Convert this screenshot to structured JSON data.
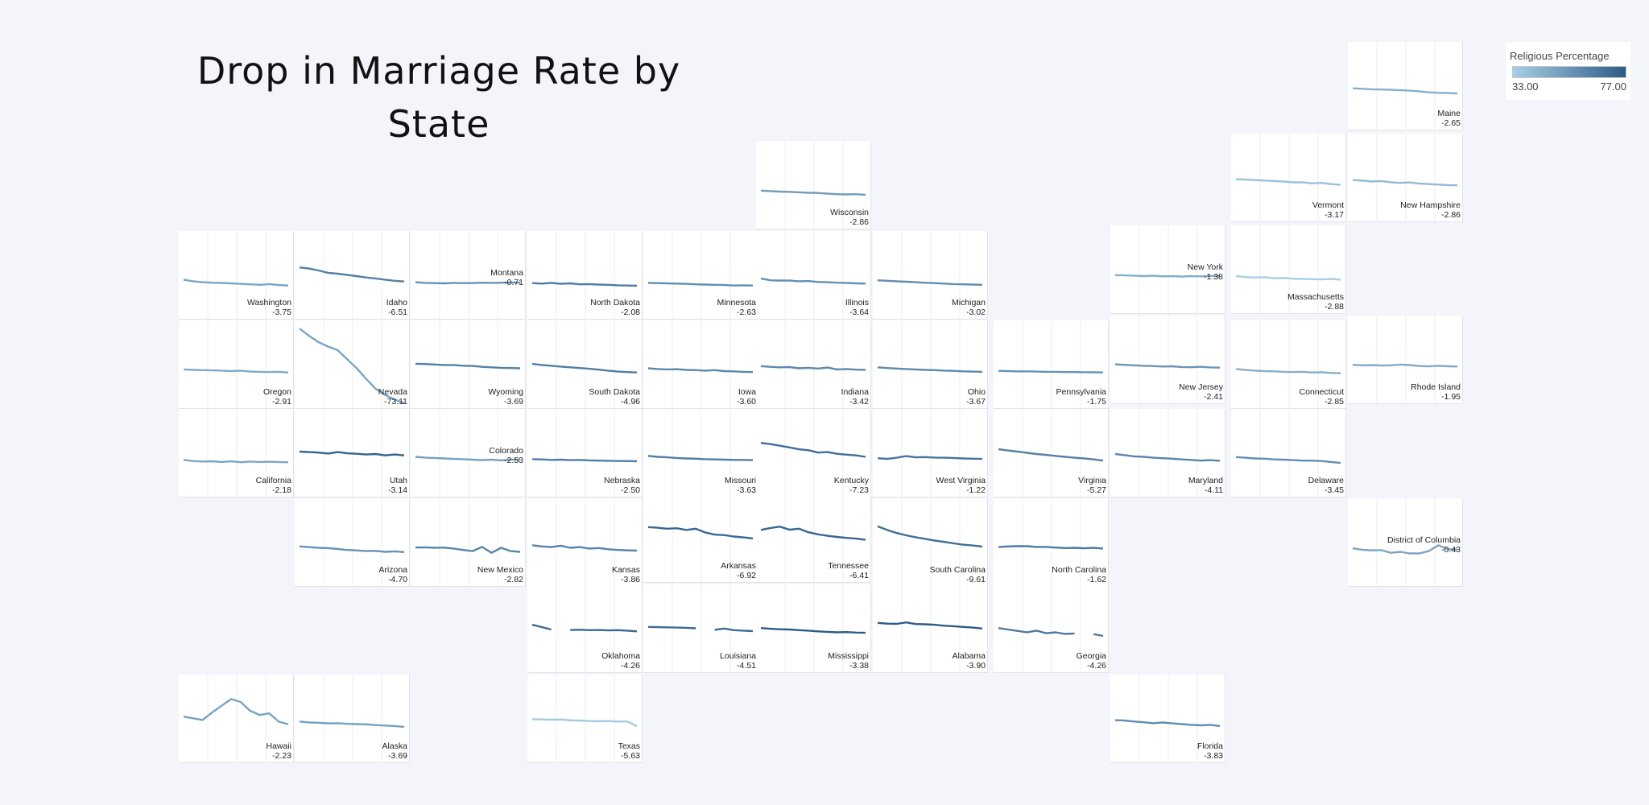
{
  "title": "Drop in Marriage Rate by State",
  "legend": {
    "title": "Religious Percentage",
    "min": "33.00",
    "max": "77.00",
    "color_min": "#a8cfe6",
    "color_max": "#2e5b88"
  },
  "chart_data": {
    "type": "line",
    "title": "Drop in Marriage Rate by State",
    "color_scale": {
      "label": "Religious Percentage",
      "min": 33,
      "max": 77
    },
    "series": [
      {
        "name": "Maine",
        "change": "-2.65",
        "religious": 45,
        "values": [
          9.2,
          9.0,
          8.8,
          8.7,
          8.6,
          8.4,
          8.2,
          7.9,
          7.5,
          7.3,
          7.2,
          7.0
        ]
      },
      {
        "name": "Vermont",
        "change": "-3.17",
        "religious": 38,
        "values": [
          9.6,
          9.4,
          9.2,
          9.0,
          8.8,
          8.6,
          8.2,
          8.3,
          7.8,
          8.0,
          7.5,
          7.2
        ]
      },
      {
        "name": "New Hampshire",
        "change": "-2.86",
        "religious": 41,
        "values": [
          9.2,
          9.0,
          8.6,
          8.8,
          8.3,
          8.0,
          8.2,
          7.7,
          7.5,
          7.3,
          7.1,
          7.0
        ]
      },
      {
        "name": "Wisconsin",
        "change": "-2.86",
        "religious": 53,
        "values": [
          7.8,
          7.6,
          7.4,
          7.3,
          7.1,
          6.9,
          6.8,
          6.5,
          6.3,
          6.2,
          6.3,
          6.0
        ]
      },
      {
        "name": "Washington",
        "change": "-3.75",
        "religious": 49,
        "values": [
          8.2,
          7.6,
          7.2,
          7.0,
          6.9,
          6.7,
          6.5,
          6.3,
          6.1,
          6.4,
          6.0,
          5.8
        ]
      },
      {
        "name": "Idaho",
        "change": "-6.51",
        "religious": 63,
        "values": [
          13.5,
          13.0,
          12.2,
          11.2,
          10.8,
          10.3,
          9.8,
          9.2,
          8.8,
          8.3,
          7.8,
          7.5
        ]
      },
      {
        "name": "Montana",
        "change": "-0.71",
        "religious": 56,
        "values": [
          7.2,
          6.9,
          6.8,
          6.7,
          6.9,
          6.8,
          6.8,
          7.0,
          6.9,
          7.0,
          7.1,
          7.0
        ]
      },
      {
        "name": "North Dakota",
        "change": "-2.08",
        "religious": 65,
        "values": [
          6.8,
          6.6,
          6.9,
          6.5,
          6.7,
          6.3,
          6.4,
          6.2,
          6.1,
          5.9,
          5.8,
          5.7
        ]
      },
      {
        "name": "Minnesota",
        "change": "-2.63",
        "religious": 58,
        "values": [
          6.9,
          6.8,
          6.7,
          6.6,
          6.5,
          6.3,
          6.2,
          6.1,
          6.0,
          5.8,
          5.9,
          5.8
        ]
      },
      {
        "name": "Illinois",
        "change": "-3.64",
        "religious": 57,
        "values": [
          8.8,
          8.0,
          7.9,
          7.9,
          7.6,
          7.7,
          7.3,
          7.2,
          7.0,
          6.9,
          6.7,
          6.6
        ]
      },
      {
        "name": "Michigan",
        "change": "-3.02",
        "religious": 58,
        "values": [
          8.0,
          7.8,
          7.6,
          7.4,
          7.2,
          7.0,
          6.8,
          6.6,
          6.4,
          6.3,
          6.2,
          6.1
        ]
      },
      {
        "name": "New York",
        "change": "-1.38",
        "religious": 46,
        "values": [
          7.8,
          7.7,
          7.6,
          7.4,
          7.6,
          7.3,
          7.4,
          7.2,
          7.4,
          7.3,
          7.5,
          7.4
        ]
      },
      {
        "name": "Massachusetts",
        "change": "-2.88",
        "religious": 33,
        "values": [
          7.4,
          7.0,
          6.8,
          6.9,
          6.5,
          6.6,
          6.3,
          6.2,
          6.1,
          6.0,
          6.2,
          5.9
        ]
      },
      {
        "name": "Oregon",
        "change": "-2.91",
        "religious": 47,
        "values": [
          8.1,
          7.9,
          7.8,
          7.7,
          7.6,
          7.4,
          7.6,
          7.2,
          7.1,
          7.0,
          7.1,
          6.8
        ]
      },
      {
        "name": "Nevada",
        "change": "-73.11",
        "religious": 49,
        "values": [
          100,
          92,
          85,
          80,
          76,
          66,
          56,
          44,
          33,
          26,
          21,
          17
        ]
      },
      {
        "name": "Wyoming",
        "change": "-3.69",
        "religious": 63,
        "values": [
          10.5,
          10.4,
          10.2,
          10.0,
          10.0,
          9.7,
          9.6,
          9.2,
          9.0,
          8.8,
          8.7,
          8.6
        ]
      },
      {
        "name": "South Dakota",
        "change": "-4.96",
        "religious": 64,
        "values": [
          10.5,
          10.0,
          9.7,
          9.3,
          9.0,
          8.7,
          8.4,
          8.0,
          7.6,
          7.2,
          7.0,
          6.8
        ]
      },
      {
        "name": "Iowa",
        "change": "-3.60",
        "religious": 60,
        "values": [
          8.6,
          8.3,
          8.1,
          8.2,
          7.9,
          7.8,
          7.6,
          7.8,
          7.4,
          7.3,
          7.1,
          7.0
        ]
      },
      {
        "name": "Indiana",
        "change": "-3.42",
        "religious": 60,
        "values": [
          9.5,
          9.2,
          9.0,
          9.1,
          8.6,
          8.8,
          8.5,
          8.9,
          8.1,
          8.3,
          8.0,
          7.9
        ]
      },
      {
        "name": "Ohio",
        "change": "-3.67",
        "religious": 60,
        "values": [
          9.0,
          8.7,
          8.5,
          8.3,
          8.1,
          7.9,
          7.8,
          7.6,
          7.5,
          7.3,
          7.2,
          7.1
        ]
      },
      {
        "name": "Pennsylvania",
        "change": "-1.75",
        "religious": 56,
        "values": [
          7.5,
          7.4,
          7.3,
          7.3,
          7.2,
          7.1,
          7.1,
          7.0,
          7.0,
          6.9,
          6.9,
          6.8
        ]
      },
      {
        "name": "New Jersey",
        "change": "-2.41",
        "religious": 55,
        "values": [
          8.2,
          8.0,
          7.8,
          7.6,
          7.5,
          7.3,
          7.4,
          7.1,
          7.0,
          7.2,
          6.9,
          6.8
        ]
      },
      {
        "name": "Connecticut",
        "change": "-2.85",
        "religious": 45,
        "values": [
          8.3,
          7.9,
          7.6,
          7.4,
          7.3,
          7.1,
          7.0,
          7.1,
          6.8,
          6.9,
          6.6,
          6.5
        ]
      },
      {
        "name": "Rhode Island",
        "change": "-1.95",
        "religious": 47,
        "values": [
          8.0,
          7.8,
          7.9,
          7.7,
          7.8,
          8.1,
          7.9,
          7.5,
          7.4,
          7.6,
          7.4,
          7.3
        ]
      },
      {
        "name": "California",
        "change": "-2.18",
        "religious": 49,
        "values": [
          7.3,
          6.8,
          6.6,
          6.7,
          6.4,
          6.7,
          6.3,
          6.6,
          6.4,
          6.5,
          6.4,
          6.3
        ]
      },
      {
        "name": "Utah",
        "change": "-3.14",
        "religious": 74,
        "values": [
          10.8,
          10.6,
          10.4,
          10.0,
          10.6,
          10.1,
          9.9,
          9.6,
          9.8,
          9.2,
          9.6,
          9.2
        ]
      },
      {
        "name": "Colorado",
        "change": "-2.53",
        "religious": 51,
        "values": [
          8.6,
          8.3,
          8.1,
          7.9,
          7.7,
          7.6,
          7.4,
          7.2,
          7.4,
          7.1,
          7.4,
          7.4
        ]
      },
      {
        "name": "Nebraska",
        "change": "-2.50",
        "religious": 64,
        "values": [
          7.6,
          7.5,
          7.3,
          7.4,
          7.2,
          7.3,
          7.1,
          7.0,
          6.9,
          6.8,
          6.8,
          6.7
        ]
      },
      {
        "name": "Missouri",
        "change": "-3.63",
        "religious": 64,
        "values": [
          9.0,
          8.6,
          8.4,
          8.1,
          7.9,
          7.8,
          7.6,
          7.5,
          7.4,
          7.3,
          7.3,
          7.2
        ]
      },
      {
        "name": "Kentucky",
        "change": "-7.23",
        "religious": 70,
        "values": [
          14.5,
          14.0,
          13.3,
          12.6,
          11.8,
          11.4,
          10.4,
          10.6,
          9.9,
          9.5,
          9.2,
          8.6
        ]
      },
      {
        "name": "West Virginia",
        "change": "-1.22",
        "religious": 68,
        "values": [
          8.0,
          7.7,
          8.2,
          8.9,
          8.4,
          8.5,
          8.3,
          8.2,
          8.1,
          7.9,
          7.8,
          7.7
        ]
      },
      {
        "name": "Virginia",
        "change": "-5.27",
        "religious": 63,
        "values": [
          11.8,
          11.3,
          10.8,
          10.3,
          9.8,
          9.4,
          9.0,
          8.6,
          8.2,
          7.9,
          7.5,
          7.0
        ]
      },
      {
        "name": "Maryland",
        "change": "-4.11",
        "religious": 61,
        "values": [
          9.8,
          9.3,
          8.8,
          8.6,
          8.2,
          8.0,
          7.8,
          7.5,
          7.3,
          7.0,
          7.2,
          6.9
        ]
      },
      {
        "name": "Delaware",
        "change": "-3.45",
        "religious": 58,
        "values": [
          8.5,
          8.2,
          7.9,
          7.8,
          7.5,
          7.4,
          7.2,
          7.0,
          7.0,
          6.8,
          6.4,
          6.0
        ]
      },
      {
        "name": "Arizona",
        "change": "-4.70",
        "religious": 56,
        "values": [
          8.5,
          8.2,
          7.9,
          7.8,
          7.4,
          7.0,
          6.8,
          6.5,
          6.6,
          6.2,
          6.4,
          6.1
        ]
      },
      {
        "name": "New Mexico",
        "change": "-2.82",
        "religious": 61,
        "values": [
          8.0,
          8.1,
          7.9,
          8.0,
          7.6,
          7.0,
          6.5,
          8.3,
          5.8,
          7.9,
          6.5,
          6.2
        ]
      },
      {
        "name": "Kansas",
        "change": "-3.86",
        "religious": 62,
        "values": [
          9.0,
          8.5,
          8.2,
          8.8,
          7.9,
          8.2,
          7.6,
          7.8,
          7.3,
          7.0,
          6.8,
          6.7
        ]
      },
      {
        "name": "Arkansas",
        "change": "-6.92",
        "religious": 73,
        "values": [
          15.0,
          14.7,
          14.3,
          14.5,
          13.8,
          14.3,
          12.7,
          11.8,
          11.6,
          11.0,
          10.6,
          10.2
        ]
      },
      {
        "name": "Tennessee",
        "change": "-6.41",
        "religious": 73,
        "values": [
          13.8,
          14.6,
          15.2,
          13.9,
          14.3,
          12.8,
          11.9,
          11.3,
          10.8,
          10.4,
          10.1,
          9.6
        ]
      },
      {
        "name": "South Carolina",
        "change": "-9.61",
        "religious": 70,
        "values": [
          17.0,
          15.5,
          14.2,
          13.2,
          12.4,
          11.7,
          11.0,
          10.4,
          9.8,
          9.2,
          8.9,
          8.4
        ]
      },
      {
        "name": "North Carolina",
        "change": "-1.62",
        "religious": 65,
        "values": [
          8.2,
          8.5,
          8.6,
          8.6,
          8.3,
          8.3,
          8.0,
          7.8,
          7.9,
          7.7,
          7.9,
          7.6
        ]
      },
      {
        "name": "District of Columbia",
        "change": "-0.43",
        "religious": 49,
        "values": [
          7.7,
          7.1,
          6.8,
          6.9,
          5.8,
          6.2,
          5.5,
          5.5,
          6.5,
          9.0,
          7.3,
          7.2
        ]
      },
      {
        "name": "Oklahoma",
        "change": "-4.26",
        "religious": 72,
        "values": [
          11.8,
          10.8,
          9.8,
          null,
          9.6,
          9.7,
          9.5,
          9.6,
          9.4,
          9.5,
          9.3,
          9.0
        ]
      },
      {
        "name": "Louisiana",
        "change": "-4.51",
        "religious": 71,
        "values": [
          10.9,
          10.8,
          10.7,
          10.6,
          10.5,
          10.3,
          null,
          9.7,
          10.2,
          9.5,
          9.3,
          9.1
        ]
      },
      {
        "name": "Mississippi",
        "change": "-3.38",
        "religious": 77,
        "values": [
          10.4,
          10.1,
          9.9,
          9.8,
          9.5,
          9.3,
          9.0,
          8.8,
          8.6,
          8.7,
          8.5,
          8.4
        ]
      },
      {
        "name": "Alabama",
        "change": "-3.90",
        "religious": 77,
        "values": [
          12.6,
          12.3,
          12.2,
          12.8,
          12.1,
          12.0,
          11.8,
          11.4,
          11.2,
          10.9,
          10.6,
          10.2
        ]
      },
      {
        "name": "Georgia",
        "change": "-4.26",
        "religious": 66,
        "values": [
          10.4,
          9.8,
          9.2,
          8.6,
          9.3,
          8.2,
          8.6,
          7.9,
          8.1,
          null,
          7.8,
          7.1
        ]
      },
      {
        "name": "Hawaii",
        "change": "-2.23",
        "religious": 50,
        "values": [
          20.0,
          19.6,
          19.2,
          21.0,
          22.6,
          24.2,
          23.5,
          21.4,
          20.4,
          20.8,
          18.8,
          18.2
        ]
      },
      {
        "name": "Alaska",
        "change": "-3.69",
        "religious": 51,
        "values": [
          9.0,
          8.6,
          8.5,
          8.2,
          8.3,
          8.0,
          7.9,
          7.8,
          7.5,
          7.3,
          7.1,
          6.7
        ]
      },
      {
        "name": "Texas",
        "change": "-5.63",
        "religious": 35,
        "values": [
          10.0,
          9.9,
          9.8,
          9.9,
          9.5,
          9.4,
          9.2,
          9.1,
          9.2,
          9.0,
          9.0,
          7.0
        ]
      },
      {
        "name": "Florida",
        "change": "-3.83",
        "religious": 58,
        "values": [
          9.6,
          9.4,
          9.0,
          8.7,
          8.3,
          8.6,
          8.2,
          7.9,
          7.6,
          7.4,
          7.6,
          7.1
        ]
      }
    ]
  }
}
